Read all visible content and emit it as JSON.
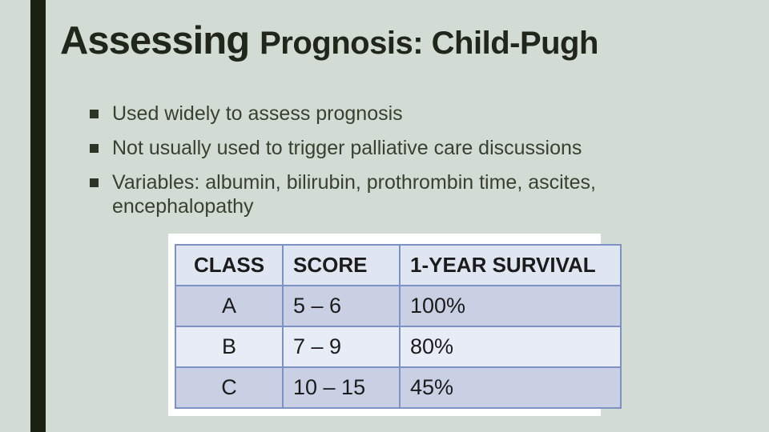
{
  "title": {
    "primary": "Assessing",
    "secondary": "Prognosis: Child-Pugh"
  },
  "bullets": [
    "Used widely to assess prognosis",
    "Not usually used to trigger palliative care discussions",
    "Variables: albumin, bilirubin, prothrombin time, ascites, encephalopathy"
  ],
  "table": {
    "headers": [
      "CLASS",
      "SCORE",
      "1-YEAR SURVIVAL"
    ],
    "rows": [
      {
        "class": "A",
        "score": "5 – 6",
        "survival": "100%"
      },
      {
        "class": "B",
        "score": "7 – 9",
        "survival": "80%"
      },
      {
        "class": "C",
        "score": "10 – 15",
        "survival": "45%"
      }
    ]
  },
  "colors": {
    "slide_background": "#d3dcd4",
    "accent_bar": "#1b2112",
    "title_text": "#20261a",
    "body_text": "#39402f",
    "table_border": "#7c92c4",
    "table_header_bg": "#e0e6f1",
    "table_row_dark_bg": "#c9d0e3",
    "table_row_light_bg": "#e8ecf6",
    "table_panel_bg": "#ffffff"
  }
}
